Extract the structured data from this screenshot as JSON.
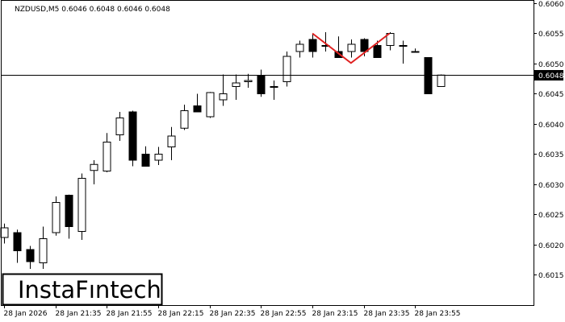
{
  "chart_data": {
    "type": "candlestick",
    "symbol_line": "NZDUSD,M5  0.6046 0.6048 0.6046 0.6048",
    "current_price_label": "0.6048",
    "current_price": 0.60481,
    "ylim": [
      0.601,
      0.606
    ],
    "y_ticks": [
      "0.6060",
      "0.6055",
      "0.6050",
      "0.6045",
      "0.6040",
      "0.6035",
      "0.6030",
      "0.6025",
      "0.6020",
      "0.6015"
    ],
    "x_ticks": [
      "28 Jan 2026",
      "28 Jan 21:35",
      "28 Jan 21:55",
      "28 Jan 22:15",
      "28 Jan 22:35",
      "28 Jan 22:55",
      "28 Jan 23:15",
      "28 Jan 23:35",
      "28 Jan 23:55"
    ],
    "candles": [
      {
        "o": 0.60212,
        "h": 0.60235,
        "l": 0.60202,
        "c": 0.60228
      },
      {
        "o": 0.6022,
        "h": 0.60225,
        "l": 0.6017,
        "c": 0.6019
      },
      {
        "o": 0.60192,
        "h": 0.60198,
        "l": 0.6016,
        "c": 0.60172
      },
      {
        "o": 0.6017,
        "h": 0.6023,
        "l": 0.6016,
        "c": 0.6021
      },
      {
        "o": 0.6022,
        "h": 0.6028,
        "l": 0.60215,
        "c": 0.6027
      },
      {
        "o": 0.60282,
        "h": 0.60283,
        "l": 0.6021,
        "c": 0.6023
      },
      {
        "o": 0.60222,
        "h": 0.60318,
        "l": 0.60208,
        "c": 0.6031
      },
      {
        "o": 0.60323,
        "h": 0.6034,
        "l": 0.603,
        "c": 0.60333
      },
      {
        "o": 0.60322,
        "h": 0.60385,
        "l": 0.6032,
        "c": 0.6037
      },
      {
        "o": 0.60382,
        "h": 0.6042,
        "l": 0.60372,
        "c": 0.6041
      },
      {
        "o": 0.6042,
        "h": 0.60422,
        "l": 0.6033,
        "c": 0.6034
      },
      {
        "o": 0.6035,
        "h": 0.60363,
        "l": 0.6033,
        "c": 0.6033
      },
      {
        "o": 0.6034,
        "h": 0.60362,
        "l": 0.60332,
        "c": 0.6035
      },
      {
        "o": 0.60362,
        "h": 0.60395,
        "l": 0.6034,
        "c": 0.6038
      },
      {
        "o": 0.60393,
        "h": 0.60432,
        "l": 0.6039,
        "c": 0.60422
      },
      {
        "o": 0.6043,
        "h": 0.6045,
        "l": 0.6042,
        "c": 0.6042
      },
      {
        "o": 0.60412,
        "h": 0.60453,
        "l": 0.6041,
        "c": 0.60452
      },
      {
        "o": 0.6044,
        "h": 0.60482,
        "l": 0.6043,
        "c": 0.6045
      },
      {
        "o": 0.60462,
        "h": 0.60482,
        "l": 0.6044,
        "c": 0.60468
      },
      {
        "o": 0.6047,
        "h": 0.60483,
        "l": 0.6046,
        "c": 0.60472
      },
      {
        "o": 0.6048,
        "h": 0.6049,
        "l": 0.60445,
        "c": 0.6045
      },
      {
        "o": 0.60462,
        "h": 0.60472,
        "l": 0.6044,
        "c": 0.60462
      },
      {
        "o": 0.6047,
        "h": 0.6052,
        "l": 0.60462,
        "c": 0.60512
      },
      {
        "o": 0.6052,
        "h": 0.60538,
        "l": 0.6051,
        "c": 0.60532
      },
      {
        "o": 0.6054,
        "h": 0.6055,
        "l": 0.6051,
        "c": 0.6052
      },
      {
        "o": 0.6053,
        "h": 0.60552,
        "l": 0.6052,
        "c": 0.6053
      },
      {
        "o": 0.6052,
        "h": 0.60545,
        "l": 0.6051,
        "c": 0.6051
      },
      {
        "o": 0.6052,
        "h": 0.6054,
        "l": 0.6051,
        "c": 0.60532
      },
      {
        "o": 0.6054,
        "h": 0.60542,
        "l": 0.60512,
        "c": 0.6052
      },
      {
        "o": 0.6053,
        "h": 0.60538,
        "l": 0.6051,
        "c": 0.6051
      },
      {
        "o": 0.6053,
        "h": 0.60552,
        "l": 0.60522,
        "c": 0.6055
      },
      {
        "o": 0.6053,
        "h": 0.60538,
        "l": 0.605,
        "c": 0.6053
      },
      {
        "o": 0.6052,
        "h": 0.60525,
        "l": 0.6052,
        "c": 0.6052
      },
      {
        "o": 0.6051,
        "h": 0.6051,
        "l": 0.6045,
        "c": 0.6045
      },
      {
        "o": 0.60462,
        "h": 0.60482,
        "l": 0.60462,
        "c": 0.60481
      }
    ],
    "pattern_line": [
      {
        "candle_index": 24,
        "price": 0.6055
      },
      {
        "candle_index": 27,
        "price": 0.60501
      },
      {
        "candle_index": 30,
        "price": 0.6055
      }
    ],
    "colors": {
      "bull_body": "#ffffff",
      "bear_body": "#000000",
      "outline": "#000000",
      "pattern": "#e02020",
      "price_line": "#000000",
      "price_tag_bg": "#000000",
      "price_tag_text": "#ffffff"
    }
  },
  "logo_text": "InstaForex"
}
